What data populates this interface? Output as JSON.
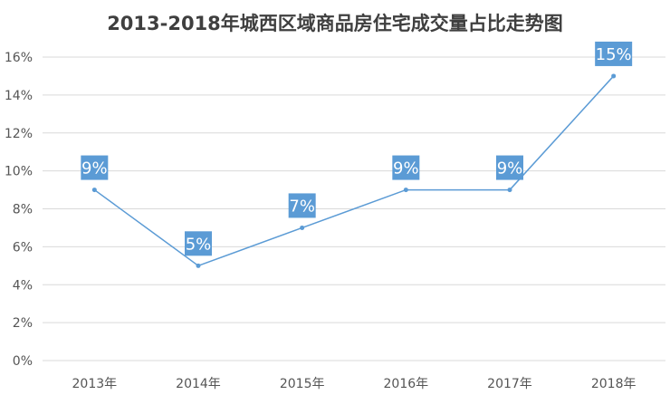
{
  "chart_data": {
    "type": "line",
    "title": "2013-2018年城西区域商品房住宅成交量占比走势图",
    "categories": [
      "2013年",
      "2014年",
      "2015年",
      "2016年",
      "2017年",
      "2018年"
    ],
    "series": [
      {
        "values": [
          9,
          5,
          7,
          9,
          9,
          15
        ],
        "data_labels": [
          "9%",
          "5%",
          "7%",
          "9%",
          "9%",
          "15%"
        ]
      }
    ],
    "ylim": [
      0,
      16
    ],
    "yticks": [
      "0%",
      "2%",
      "4%",
      "6%",
      "8%",
      "10%",
      "12%",
      "14%",
      "16%"
    ],
    "grid": true,
    "legend": "none",
    "colors": {
      "line": "#5b9bd5",
      "label_bg": "#5b9bd5",
      "grid": "#d9d9d9"
    }
  }
}
